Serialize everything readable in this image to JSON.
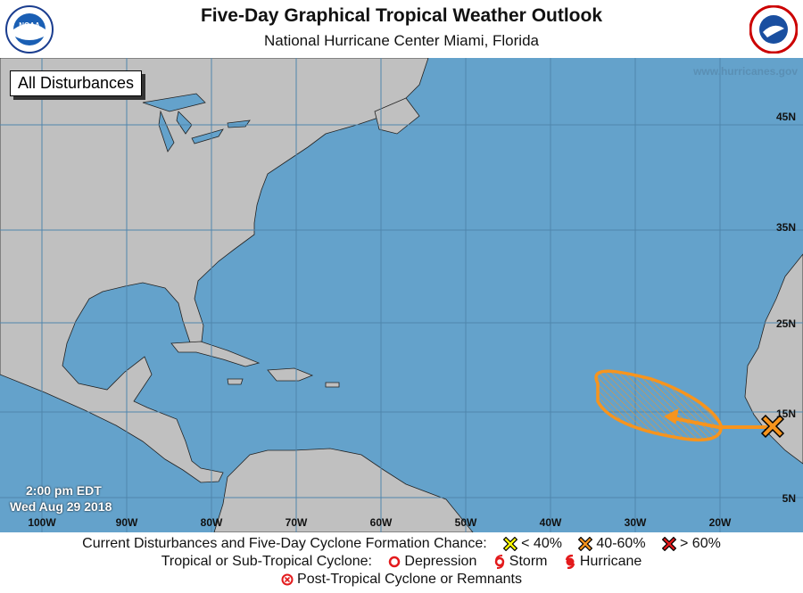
{
  "header": {
    "title": "Five-Day Graphical Tropical Weather Outlook",
    "subtitle": "National Hurricane Center  Miami, Florida",
    "left_logo": "noaa-logo",
    "right_logo": "nws-logo"
  },
  "map": {
    "badge": "All Disturbances",
    "website": "www.hurricanes.gov",
    "time": "2:00 pm EDT",
    "date": "Wed Aug 29 2018",
    "lon_labels": [
      "100W",
      "90W",
      "80W",
      "70W",
      "60W",
      "50W",
      "40W",
      "30W",
      "20W"
    ],
    "lat_labels": [
      "45N",
      "35N",
      "25N",
      "15N",
      "5N"
    ],
    "colors": {
      "ocean": "#64a2cb",
      "land": "#c0c0c0",
      "grid": "#4f86ad",
      "disturbance": "#f7941d"
    },
    "disturbances": [
      {
        "chance_category": "40-60%",
        "color": "#f7941d",
        "marker": "x-icon",
        "area": "hatched",
        "motion": "west"
      }
    ]
  },
  "legend": {
    "row1_label": "Current Disturbances and Five-Day Cyclone Formation Chance:",
    "low": "< 40%",
    "medium": "40-60%",
    "high": "> 60%",
    "low_color": "#ffff00",
    "medium_color": "#f7941d",
    "high_color": "#e31a1c",
    "row2_label": "Tropical or Sub-Tropical Cyclone:",
    "depression": "Depression",
    "storm": "Storm",
    "hurricane": "Hurricane",
    "row3_label": "Post-Tropical Cyclone or Remnants"
  }
}
